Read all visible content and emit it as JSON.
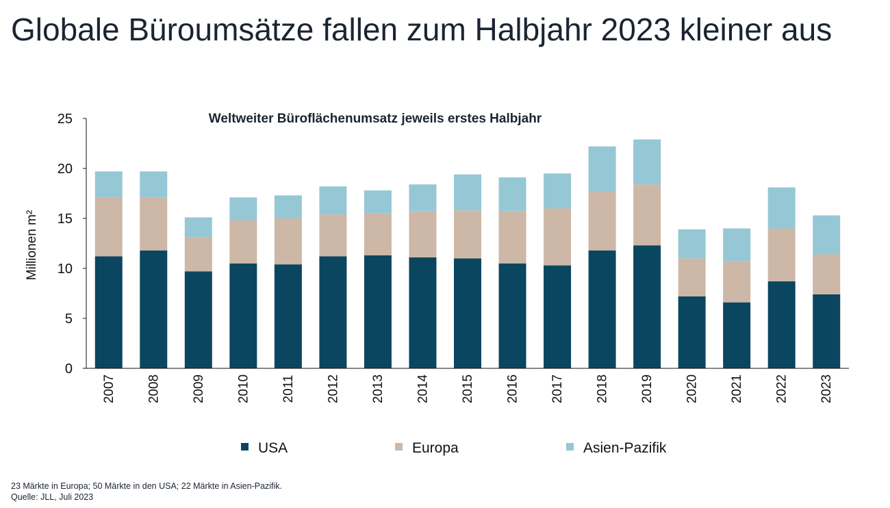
{
  "page": {
    "title": "Globale Büroumsätze fallen zum Halbjahr 2023 kleiner aus",
    "footnotes": [
      "23 Märkte in Europa; 50 Märkte in den USA; 22 Märkte in Asien-Pazifik.",
      "Quelle: JLL, Juli 2023"
    ]
  },
  "chart_data": {
    "type": "bar",
    "stacked": true,
    "title": "Weltweiter Büroflächenumsatz jeweils erstes Halbjahr",
    "ylabel": "Millionen m²",
    "xlabel": "",
    "ylim": [
      0,
      25
    ],
    "yticks": [
      0,
      5,
      10,
      15,
      20,
      25
    ],
    "grid": false,
    "legend_position": "bottom",
    "categories": [
      "2007",
      "2008",
      "2009",
      "2010",
      "2011",
      "2012",
      "2013",
      "2014",
      "2015",
      "2016",
      "2017",
      "2018",
      "2019",
      "2020",
      "2021",
      "2022",
      "2023"
    ],
    "series": [
      {
        "name": "USA",
        "color": "#0b4660",
        "values": [
          11.2,
          11.8,
          9.7,
          10.5,
          10.4,
          11.2,
          11.3,
          11.1,
          11.0,
          10.5,
          10.3,
          11.8,
          12.3,
          7.2,
          6.6,
          8.7,
          7.4
        ]
      },
      {
        "name": "Europa",
        "color": "#cdb7a6",
        "values": [
          5.9,
          5.3,
          3.4,
          4.3,
          4.6,
          4.2,
          4.2,
          4.6,
          4.8,
          5.2,
          5.7,
          5.9,
          6.1,
          3.8,
          4.1,
          5.3,
          4.0
        ]
      },
      {
        "name": "Asien-Pazifik",
        "color": "#96c7d5",
        "values": [
          2.6,
          2.6,
          2.0,
          2.3,
          2.3,
          2.8,
          2.3,
          2.7,
          3.6,
          3.4,
          3.5,
          4.5,
          4.5,
          2.9,
          3.3,
          4.1,
          3.9
        ]
      }
    ]
  }
}
